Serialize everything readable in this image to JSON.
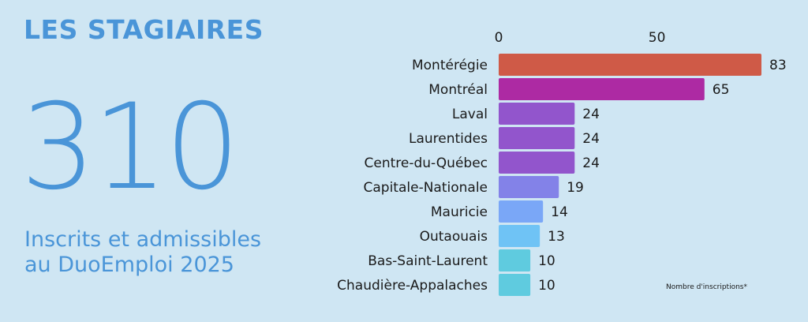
{
  "heading": "LES STAGIAIRES",
  "stat": {
    "value": "310",
    "caption_line1": "Inscrits et admissibles",
    "caption_line2": "au DuoEmploi 2025"
  },
  "footnote": "Nombre d'inscriptions*",
  "chart_data": {
    "type": "bar",
    "orientation": "horizontal",
    "categories": [
      "Montérégie",
      "Montréal",
      "Laval",
      "Laurentides",
      "Centre-du-Québec",
      "Capitale-Nationale",
      "Mauricie",
      "Outaouais",
      "Bas-Saint-Laurent",
      "Chaudière-Appalaches"
    ],
    "values": [
      83,
      65,
      24,
      24,
      24,
      19,
      14,
      13,
      10,
      10
    ],
    "bar_colors": [
      "#cf5a47",
      "#ad2aa3",
      "#9255cc",
      "#9255cc",
      "#9255cc",
      "#8382e8",
      "#7aa7f7",
      "#6fc3f5",
      "#5fcbdf",
      "#5fcbdf"
    ],
    "x_ticks": [
      0,
      50
    ],
    "xlim": [
      0,
      83
    ],
    "tick_position": "top",
    "data_labels": true,
    "grid": false,
    "legend": "none"
  },
  "colors": {
    "background": "#cfe6f3",
    "accent": "#4a95d8",
    "text": "#1a1a1a"
  }
}
